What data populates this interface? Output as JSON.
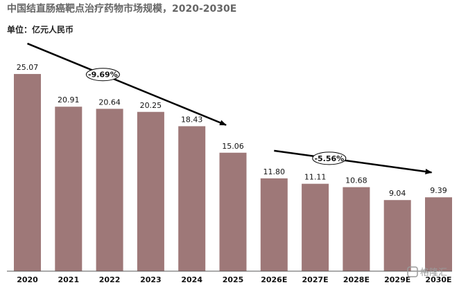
{
  "chart_data": {
    "type": "bar",
    "title": "中国结直肠癌靶点治疗药物市场规模，2020-2030E",
    "unit_label": "单位：亿元人民币",
    "categories": [
      "2020",
      "2021",
      "2022",
      "2023",
      "2024",
      "2025",
      "2026E",
      "2027E",
      "2028E",
      "2029E",
      "2030E"
    ],
    "values": [
      25.07,
      20.91,
      20.64,
      20.25,
      18.43,
      15.06,
      11.8,
      11.11,
      10.68,
      9.04,
      9.39
    ],
    "value_labels": [
      "25.07",
      "20.91",
      "20.64",
      "20.25",
      "18.43",
      "15.06",
      "11.80",
      "11.11",
      "10.68",
      "9.04",
      "9.39"
    ],
    "bar_color": "#9e7878",
    "ylim": [
      0,
      27
    ],
    "annotations": [
      {
        "text": "-9.69%",
        "from": "2020",
        "to": "2025"
      },
      {
        "text": "-5.56%",
        "from": "2026E",
        "to": "2030E"
      }
    ]
  },
  "watermark": {
    "text": "格隆汇"
  }
}
